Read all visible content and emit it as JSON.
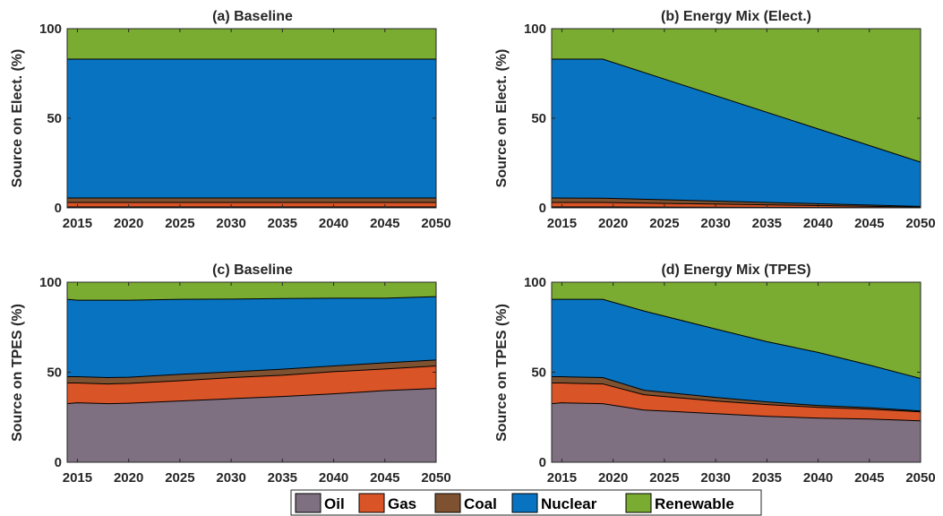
{
  "colors": {
    "Oil": "#7e7080",
    "Gas": "#d95427",
    "Coal": "#7e5230",
    "Nuclear": "#0873c1",
    "Renewable": "#7aac32"
  },
  "legend": [
    "Oil",
    "Gas",
    "Coal",
    "Nuclear",
    "Renewable"
  ],
  "chart_data": [
    {
      "type": "area",
      "stacked": true,
      "title": "(a) Baseline",
      "ylabel": "Source on Elect. (%)",
      "xlabel": "",
      "xlim": [
        2014,
        2050
      ],
      "ylim": [
        0,
        100
      ],
      "xticks": [
        2015,
        2020,
        2025,
        2030,
        2035,
        2040,
        2045,
        2050
      ],
      "yticks": [
        0,
        50,
        100
      ],
      "x": [
        2014,
        2050
      ],
      "series": [
        {
          "name": "Oil",
          "values": [
            0.5,
            0.5
          ]
        },
        {
          "name": "Gas",
          "values": [
            2.5,
            2.5
          ]
        },
        {
          "name": "Coal",
          "values": [
            2.5,
            2.5
          ]
        },
        {
          "name": "Nuclear",
          "values": [
            77.5,
            77.5
          ]
        },
        {
          "name": "Renewable",
          "values": [
            17,
            17
          ]
        }
      ]
    },
    {
      "type": "area",
      "stacked": true,
      "title": "(b) Energy Mix (Elect.)",
      "ylabel": "Source on Elect. (%)",
      "xlabel": "",
      "xlim": [
        2014,
        2050
      ],
      "ylim": [
        0,
        100
      ],
      "xticks": [
        2015,
        2020,
        2025,
        2030,
        2035,
        2040,
        2045,
        2050
      ],
      "yticks": [
        0,
        50,
        100
      ],
      "x": [
        2014,
        2019,
        2050
      ],
      "series": [
        {
          "name": "Oil",
          "values": [
            0.5,
            0.5,
            0.1
          ]
        },
        {
          "name": "Gas",
          "values": [
            2.5,
            2.5,
            0.3
          ]
        },
        {
          "name": "Coal",
          "values": [
            2.5,
            2.4,
            0.4
          ]
        },
        {
          "name": "Nuclear",
          "values": [
            77.5,
            77.6,
            24.7
          ]
        },
        {
          "name": "Renewable",
          "values": [
            17,
            17,
            74.5
          ]
        }
      ]
    },
    {
      "type": "area",
      "stacked": true,
      "title": "(c) Baseline",
      "ylabel": "Source on TPES (%)",
      "xlabel": "",
      "xlim": [
        2014,
        2050
      ],
      "ylim": [
        0,
        100
      ],
      "xticks": [
        2015,
        2020,
        2025,
        2030,
        2035,
        2040,
        2045,
        2050
      ],
      "yticks": [
        0,
        50,
        100
      ],
      "x": [
        2014,
        2015,
        2018,
        2020,
        2025,
        2030,
        2035,
        2040,
        2045,
        2050
      ],
      "series": [
        {
          "name": "Oil",
          "values": [
            32.5,
            33,
            32.5,
            32.8,
            34,
            35.3,
            36.5,
            38,
            39.8,
            41
          ]
        },
        {
          "name": "Gas",
          "values": [
            11.5,
            11,
            11,
            11,
            11.3,
            11.7,
            11.8,
            12.3,
            12,
            12.5
          ]
        },
        {
          "name": "Coal",
          "values": [
            3.5,
            3.5,
            3.5,
            3.4,
            3.5,
            3.2,
            3.4,
            3.2,
            3.4,
            3.3
          ]
        },
        {
          "name": "Nuclear",
          "values": [
            43,
            42.5,
            43,
            42.8,
            41.7,
            40.4,
            39.2,
            37.6,
            35.9,
            35.2
          ]
        },
        {
          "name": "Renewable",
          "values": [
            9.5,
            10,
            10,
            10,
            9.5,
            9.4,
            9.1,
            8.9,
            8.9,
            8
          ]
        }
      ]
    },
    {
      "type": "area",
      "stacked": true,
      "title": "(d) Energy Mix (TPES)",
      "ylabel": "Source on TPES (%)",
      "xlabel": "",
      "xlim": [
        2014,
        2050
      ],
      "ylim": [
        0,
        100
      ],
      "xticks": [
        2015,
        2020,
        2025,
        2030,
        2035,
        2040,
        2045,
        2050
      ],
      "yticks": [
        0,
        50,
        100
      ],
      "x": [
        2014,
        2015,
        2019,
        2023,
        2030,
        2035,
        2040,
        2045,
        2050
      ],
      "series": [
        {
          "name": "Oil",
          "values": [
            32.5,
            33,
            32.5,
            29,
            27,
            25.5,
            24.5,
            24,
            23
          ]
        },
        {
          "name": "Gas",
          "values": [
            11.5,
            11,
            11,
            8.5,
            7,
            6.5,
            6,
            5.5,
            5
          ]
        },
        {
          "name": "Coal",
          "values": [
            3.5,
            3.5,
            3.5,
            2.5,
            2,
            1.5,
            1,
            0.8,
            0.5
          ]
        },
        {
          "name": "Nuclear",
          "values": [
            43,
            43,
            43.5,
            44,
            38,
            33.5,
            29.5,
            23.7,
            18
          ]
        },
        {
          "name": "Renewable",
          "values": [
            9.5,
            9.5,
            9.5,
            16,
            26,
            33,
            39,
            46,
            53.5
          ]
        }
      ]
    }
  ]
}
